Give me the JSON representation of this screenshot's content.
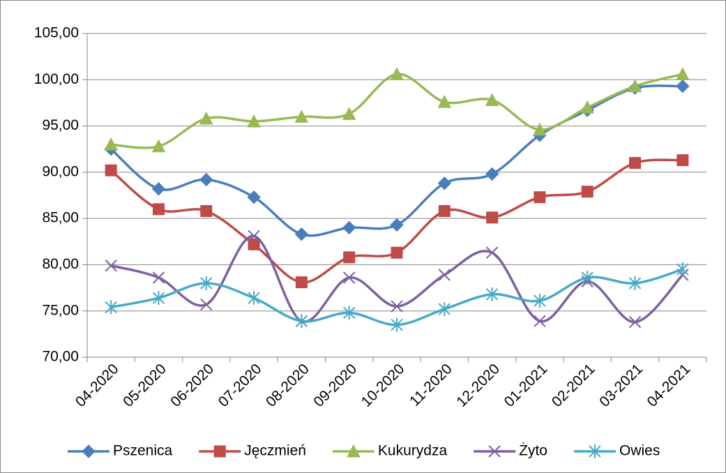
{
  "chart_data": {
    "type": "line",
    "smooth": true,
    "grid": true,
    "legend": "bottom",
    "categories": [
      "04-2020",
      "05-2020",
      "06-2020",
      "07-2020",
      "08-2020",
      "09-2020",
      "10-2020",
      "11-2020",
      "12-2020",
      "01-2021",
      "02-2021",
      "03-2021",
      "04-2021"
    ],
    "ylim": [
      70,
      105
    ],
    "yticks": [
      {
        "value": 70,
        "label": "70,00"
      },
      {
        "value": 75,
        "label": "75,00"
      },
      {
        "value": 80,
        "label": "80,00"
      },
      {
        "value": 85,
        "label": "85,00"
      },
      {
        "value": 90,
        "label": "90,00"
      },
      {
        "value": 95,
        "label": "95,00"
      },
      {
        "value": 100,
        "label": "100,00"
      },
      {
        "value": 105,
        "label": "105,00"
      }
    ],
    "series": [
      {
        "name": "Pszenica",
        "color": "#4a7ebb",
        "marker": "diamond",
        "values": [
          92.5,
          88.2,
          89.2,
          87.3,
          83.3,
          84.0,
          84.3,
          88.8,
          89.8,
          94.0,
          96.7,
          99.1,
          99.3
        ]
      },
      {
        "name": "Jęczmień",
        "color": "#be4b48",
        "marker": "square",
        "values": [
          90.2,
          86.0,
          85.8,
          82.2,
          78.1,
          80.8,
          81.3,
          85.8,
          85.1,
          87.3,
          87.9,
          91.0,
          91.3
        ]
      },
      {
        "name": "Kukurydza",
        "color": "#98b954",
        "marker": "triangle",
        "values": [
          93.0,
          92.8,
          95.8,
          95.5,
          96.0,
          96.3,
          100.6,
          97.6,
          97.8,
          94.6,
          97.0,
          99.3,
          100.6
        ]
      },
      {
        "name": "Żyto",
        "color": "#7d60a0",
        "marker": "x",
        "values": [
          79.9,
          78.6,
          75.7,
          83.1,
          73.9,
          78.6,
          75.5,
          78.9,
          81.3,
          73.9,
          78.2,
          73.8,
          78.9
        ]
      },
      {
        "name": "Owies",
        "color": "#46aac5",
        "marker": "star",
        "values": [
          75.4,
          76.4,
          78.0,
          76.4,
          73.9,
          74.8,
          73.5,
          75.2,
          76.8,
          76.1,
          78.6,
          78.0,
          79.5
        ]
      }
    ]
  }
}
